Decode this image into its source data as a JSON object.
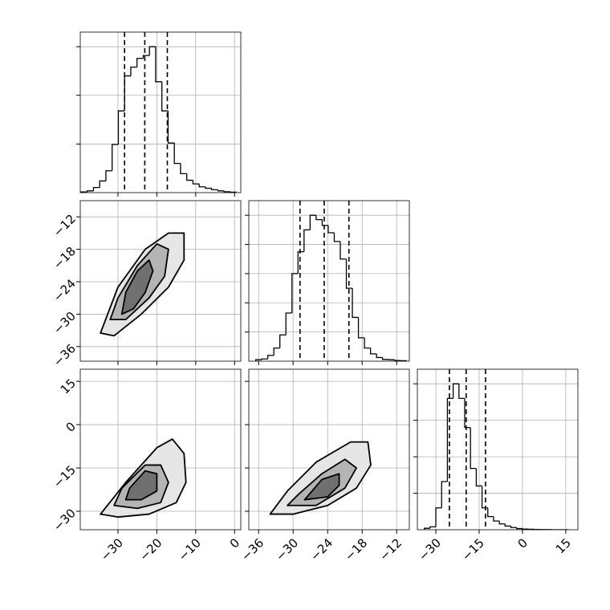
{
  "chart_data": [
    {
      "type": "histogram",
      "bins": [
        -39.5,
        -37.9,
        -36.3,
        -34.7,
        -33.1,
        -31.5,
        -29.9,
        -28.3,
        -26.7,
        -25.1,
        -23.5,
        -21.9,
        -20.3,
        -18.7,
        -17.1,
        -15.5,
        -13.9,
        -12.3,
        -10.7,
        -9.1,
        -7.5,
        -5.9,
        -4.3,
        -2.7,
        -1.1,
        0.5
      ],
      "values": [
        5,
        12,
        35,
        80,
        150,
        330,
        560,
        800,
        860,
        920,
        940,
        1000,
        760,
        560,
        340,
        200,
        130,
        85,
        60,
        40,
        30,
        20,
        12,
        6,
        3
      ],
      "quantiles": [
        -28.3,
        -23.1,
        -17.3
      ],
      "xlim": [
        -39.7,
        1.6
      ],
      "ylim": [
        0,
        1100
      ],
      "xticks": [
        -30,
        -20,
        -10,
        0
      ],
      "yticks": [
        333,
        667,
        1000
      ],
      "grid": true,
      "color": "#000000"
    },
    {
      "type": "contour",
      "xlim": [
        -39.7,
        1.6
      ],
      "ylim": [
        -38.7,
        -9
      ],
      "xticks": [
        -30,
        -20,
        -10,
        0
      ],
      "yticks": [
        {
          "value": -12,
          "label": "−12"
        },
        {
          "value": -18,
          "label": "−18"
        },
        {
          "value": -24,
          "label": "−24"
        },
        {
          "value": -30,
          "label": "−30"
        },
        {
          "value": -36,
          "label": "−36"
        }
      ],
      "ytick_labels": true,
      "grid": true,
      "contours": [
        {
          "x": [
            -34.5,
            -31,
            -24,
            -17,
            -13,
            -13,
            -17,
            -23,
            -30,
            -34.5
          ],
          "y": [
            -33.5,
            -34,
            -30,
            -25,
            -20,
            -15,
            -15,
            -18,
            -25,
            -33.5
          ],
          "fill": "#e6e6e6"
        },
        {
          "x": [
            -32,
            -28,
            -22,
            -18,
            -17,
            -20,
            -25,
            -30,
            -32
          ],
          "y": [
            -31,
            -31,
            -27,
            -23,
            -18,
            -17,
            -21,
            -27,
            -31
          ],
          "fill": "#b4b4b4"
        },
        {
          "x": [
            -29,
            -26,
            -23,
            -21,
            -22,
            -25,
            -28,
            -29
          ],
          "y": [
            -30,
            -29,
            -26,
            -22,
            -20,
            -22,
            -26,
            -30
          ],
          "fill": "#707070"
        }
      ]
    },
    {
      "type": "histogram",
      "bins": [
        -36.5,
        -35.45,
        -34.4,
        -33.35,
        -32.3,
        -31.25,
        -30.2,
        -29.15,
        -28.1,
        -27.05,
        -26,
        -24.95,
        -23.9,
        -22.85,
        -21.8,
        -20.75,
        -19.7,
        -18.65,
        -17.6,
        -16.55,
        -15.5,
        -14.45,
        -13.4,
        -12.35,
        -11.3,
        -10.25
      ],
      "values": [
        10,
        15,
        40,
        90,
        180,
        330,
        600,
        750,
        900,
        1000,
        970,
        930,
        880,
        820,
        700,
        500,
        300,
        160,
        90,
        50,
        25,
        12,
        10,
        5,
        3
      ],
      "quantiles": [
        -28.8,
        -24.6,
        -20.3
      ],
      "xlim": [
        -37.7,
        -9.8
      ],
      "ylim": [
        0,
        1100
      ],
      "xticks": [
        -36,
        -30,
        -24,
        -18,
        -12
      ],
      "yticks": [
        200,
        400,
        600,
        800,
        1000
      ],
      "grid": true,
      "color": "#000000"
    },
    {
      "type": "contour",
      "xlim": [
        -39.7,
        1.6
      ],
      "ylim": [
        -36.4,
        19.2
      ],
      "xticks": [
        {
          "value": -30,
          "label": "−30"
        },
        {
          "value": -20,
          "label": "−20"
        },
        {
          "value": -10,
          "label": "−10"
        },
        0
      ],
      "yticks": [
        15,
        0,
        {
          "value": -15,
          "label": "−15"
        },
        {
          "value": -30,
          "label": "−30"
        }
      ],
      "xtick_labels": true,
      "ytick_labels": true,
      "grid": true,
      "contours": [
        {
          "x": [
            -34.5,
            -30,
            -22,
            -15,
            -12.5,
            -13,
            -16,
            -20,
            -28,
            -34.5
          ],
          "y": [
            -31,
            -32,
            -31,
            -27,
            -20,
            -10,
            -5,
            -8,
            -20,
            -31
          ],
          "fill": "#e6e6e6"
        },
        {
          "x": [
            -31,
            -25,
            -19,
            -17,
            -19,
            -23,
            -29,
            -31
          ],
          "y": [
            -28,
            -29,
            -27,
            -20,
            -14,
            -14,
            -22,
            -28
          ],
          "fill": "#b4b4b4"
        },
        {
          "x": [
            -28,
            -24,
            -20,
            -20,
            -23,
            -27,
            -28
          ],
          "y": [
            -26,
            -26,
            -23,
            -17,
            -16,
            -22,
            -26
          ],
          "fill": "#707070"
        }
      ]
    },
    {
      "type": "contour",
      "xlim": [
        -37.7,
        -9.8
      ],
      "ylim": [
        -36.4,
        19.2
      ],
      "xticks": [
        {
          "value": -36,
          "label": "−36"
        },
        {
          "value": -30,
          "label": "−30"
        },
        {
          "value": -24,
          "label": "−24"
        },
        {
          "value": -18,
          "label": "−18"
        },
        {
          "value": -12,
          "label": "−12"
        }
      ],
      "yticks": [
        15,
        0,
        -15,
        -30
      ],
      "xtick_labels": true,
      "grid": true,
      "contours": [
        {
          "x": [
            -34,
            -30,
            -24,
            -19,
            -16.5,
            -17,
            -20,
            -26,
            -31,
            -34
          ],
          "y": [
            -31,
            -31,
            -28,
            -22,
            -14,
            -6,
            -6,
            -13,
            -23,
            -31
          ],
          "fill": "#e6e6e6"
        },
        {
          "x": [
            -31,
            -26,
            -21,
            -19,
            -21,
            -25,
            -29,
            -31
          ],
          "y": [
            -28,
            -28,
            -22,
            -15,
            -12,
            -17,
            -24,
            -28
          ],
          "fill": "#b4b4b4"
        },
        {
          "x": [
            -28,
            -24,
            -22,
            -22,
            -25,
            -28
          ],
          "y": [
            -26,
            -25,
            -21,
            -17,
            -19,
            -26
          ],
          "fill": "#707070"
        }
      ]
    },
    {
      "type": "histogram",
      "bins": [
        -34,
        -32,
        -30,
        -28,
        -26,
        -24,
        -22,
        -20,
        -18,
        -16,
        -14,
        -12,
        -10,
        -8,
        -6,
        -4,
        -2,
        0,
        2,
        4,
        6,
        8,
        10,
        12,
        14,
        16
      ],
      "values": [
        10,
        20,
        150,
        330,
        900,
        1000,
        900,
        700,
        420,
        300,
        150,
        90,
        60,
        40,
        25,
        15,
        8,
        5,
        3,
        2,
        1,
        1,
        0,
        0,
        0
      ],
      "quantiles": [
        -25.3,
        -19.5,
        -12.8
      ],
      "xlim": [
        -36.4,
        19.2
      ],
      "ylim": [
        0,
        1100
      ],
      "xticks": [
        {
          "value": -30,
          "label": "−30"
        },
        {
          "value": -15,
          "label": "−15"
        },
        0,
        15
      ],
      "yticks": [
        250,
        500,
        750,
        1000
      ],
      "xtick_labels": true,
      "grid": true,
      "color": "#000000"
    }
  ]
}
